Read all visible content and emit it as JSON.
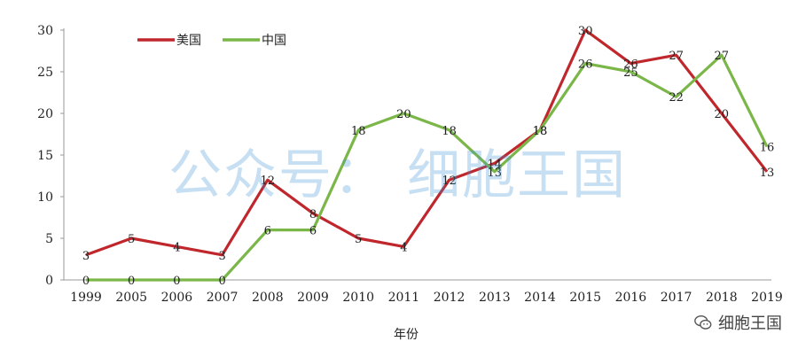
{
  "chart_data": {
    "type": "line",
    "categories": [
      "1999",
      "2005",
      "2006",
      "2007",
      "2008",
      "2009",
      "2010",
      "2011",
      "2012",
      "2013",
      "2014",
      "2015",
      "2016",
      "2017",
      "2018",
      "2019"
    ],
    "series": [
      {
        "name": "美国",
        "color": "#c0272d",
        "values": [
          3,
          5,
          4,
          3,
          12,
          8,
          5,
          4,
          12,
          14,
          18,
          30,
          26,
          27,
          20,
          13
        ]
      },
      {
        "name": "中国",
        "color": "#7ab648",
        "values": [
          0,
          0,
          0,
          0,
          6,
          6,
          18,
          20,
          18,
          13,
          18,
          26,
          25,
          22,
          27,
          16
        ]
      }
    ],
    "xlabel": "年份",
    "ylabel": "",
    "ylim": [
      0,
      30
    ],
    "yticks": [
      0,
      5,
      10,
      15,
      20,
      25,
      30
    ],
    "grid": false,
    "legend": "top-left"
  },
  "watermark": "公众号： 细胞王国",
  "brand": {
    "text": "细胞王国",
    "icon": "wechat-icon"
  }
}
